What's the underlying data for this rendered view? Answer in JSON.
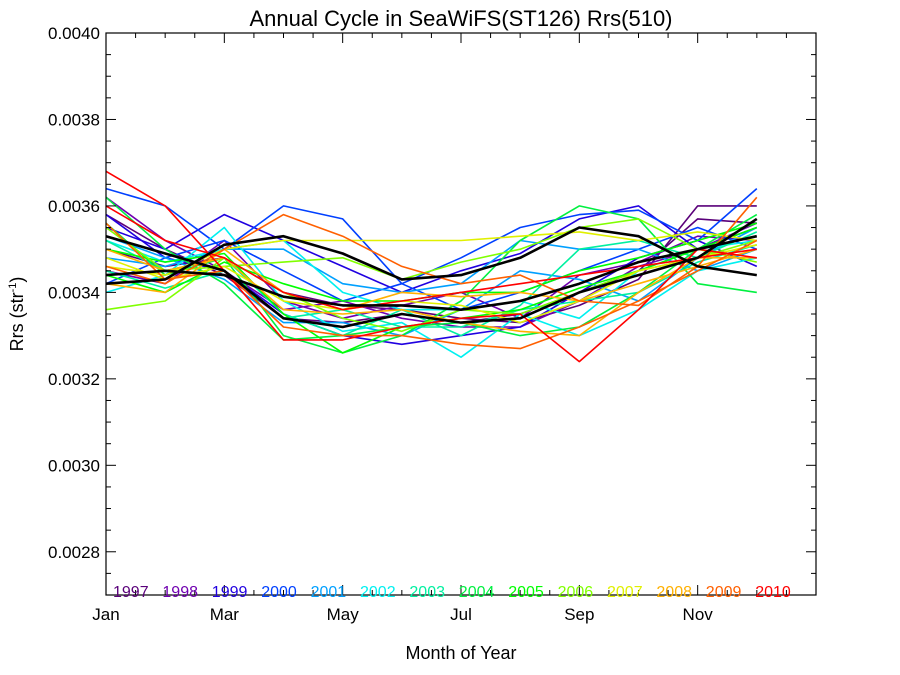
{
  "chart_data": {
    "type": "line",
    "title": "Annual Cycle in SeaWiFS(ST126) Rrs(510)",
    "xlabel": "Month of Year",
    "ylabel_main": "Rrs (str",
    "ylabel_sup": "-1",
    "ylabel_close": ")",
    "xlim": [
      1,
      13
    ],
    "ylim": [
      0.0027,
      0.004
    ],
    "x_ticks": [
      {
        "value": 1,
        "label": "Jan"
      },
      {
        "value": 3,
        "label": "Mar"
      },
      {
        "value": 5,
        "label": "May"
      },
      {
        "value": 7,
        "label": "Jul"
      },
      {
        "value": 9,
        "label": "Sep"
      },
      {
        "value": 11,
        "label": "Nov"
      }
    ],
    "y_ticks": [
      {
        "value": 0.0028,
        "label": "0.0028"
      },
      {
        "value": 0.003,
        "label": "0.0030"
      },
      {
        "value": 0.0032,
        "label": "0.0032"
      },
      {
        "value": 0.0034,
        "label": "0.0034"
      },
      {
        "value": 0.0036,
        "label": "0.0036"
      },
      {
        "value": 0.0038,
        "label": "0.0038"
      },
      {
        "value": 0.004,
        "label": "0.0040"
      }
    ],
    "x": [
      1,
      2,
      3,
      4,
      5,
      6,
      7,
      8,
      9,
      10,
      11,
      12
    ],
    "legend": [
      {
        "label": "1997",
        "color": "#5a007a"
      },
      {
        "label": "1998",
        "color": "#7000b0"
      },
      {
        "label": "1999",
        "color": "#2000e0"
      },
      {
        "label": "2000",
        "color": "#0040ff"
      },
      {
        "label": "2001",
        "color": "#00a0ff"
      },
      {
        "label": "2002",
        "color": "#00f0f0"
      },
      {
        "label": "2003",
        "color": "#00f0a0"
      },
      {
        "label": "2004",
        "color": "#00f040"
      },
      {
        "label": "2005",
        "color": "#00ff00"
      },
      {
        "label": "2006",
        "color": "#80ff00"
      },
      {
        "label": "2007",
        "color": "#e0f000"
      },
      {
        "label": "2008",
        "color": "#ffb000"
      },
      {
        "label": "2009",
        "color": "#ff6000"
      },
      {
        "label": "2010",
        "color": "#ff0000"
      }
    ],
    "series": [
      {
        "color": "#5a007a",
        "values": [
          0.0035,
          0.00346,
          0.00348,
          0.0034,
          0.00337,
          0.00336,
          0.00334,
          0.00333,
          0.00337,
          0.00343,
          0.0036,
          0.0036
        ]
      },
      {
        "color": "#5a007a",
        "values": [
          0.00358,
          0.0035,
          0.00344,
          0.00334,
          0.00333,
          0.00335,
          0.00333,
          0.00335,
          0.0034,
          0.00345,
          0.00357,
          0.00356
        ]
      },
      {
        "color": "#7000b0",
        "values": [
          0.00362,
          0.00352,
          0.00345,
          0.00336,
          0.00338,
          0.00334,
          0.00332,
          0.00332,
          0.00338,
          0.00346,
          0.0035,
          0.00356
        ]
      },
      {
        "color": "#7000b0",
        "values": [
          0.00345,
          0.00342,
          0.00352,
          0.00338,
          0.00334,
          0.00337,
          0.0034,
          0.00334,
          0.00344,
          0.00347,
          0.00353,
          0.00352
        ]
      },
      {
        "color": "#2000e0",
        "values": [
          0.00355,
          0.0035,
          0.00358,
          0.00352,
          0.00346,
          0.0034,
          0.00345,
          0.00349,
          0.00357,
          0.0036,
          0.0035,
          0.00355
        ]
      },
      {
        "color": "#2000e0",
        "values": [
          0.00358,
          0.00348,
          0.00345,
          0.00335,
          0.0033,
          0.00328,
          0.0033,
          0.00332,
          0.0034,
          0.00348,
          0.00352,
          0.00346
        ]
      },
      {
        "color": "#0040ff",
        "values": [
          0.00364,
          0.0036,
          0.0035,
          0.0036,
          0.00357,
          0.00342,
          0.00348,
          0.00355,
          0.00358,
          0.00359,
          0.00352,
          0.00364
        ]
      },
      {
        "color": "#0040ff",
        "values": [
          0.00342,
          0.00348,
          0.00352,
          0.00345,
          0.00338,
          0.00342,
          0.00336,
          0.0034,
          0.00345,
          0.0035,
          0.00355,
          0.0035
        ]
      },
      {
        "color": "#00a0ff",
        "values": [
          0.00353,
          0.00348,
          0.00343,
          0.00333,
          0.00333,
          0.0033,
          0.00336,
          0.00345,
          0.00343,
          0.00338,
          0.00348,
          0.00355
        ]
      },
      {
        "color": "#00a0ff",
        "values": [
          0.00348,
          0.00346,
          0.0035,
          0.0035,
          0.00342,
          0.0034,
          0.00342,
          0.00352,
          0.0035,
          0.0035,
          0.00345,
          0.0035
        ]
      },
      {
        "color": "#00f0f0",
        "values": [
          0.0034,
          0.00344,
          0.00355,
          0.00338,
          0.00331,
          0.00333,
          0.00325,
          0.00335,
          0.0033,
          0.00336,
          0.00345,
          0.00348
        ]
      },
      {
        "color": "#00f0f0",
        "values": [
          0.00352,
          0.00347,
          0.0035,
          0.00352,
          0.0034,
          0.00336,
          0.00336,
          0.00338,
          0.00334,
          0.00345,
          0.0035,
          0.00352
        ]
      },
      {
        "color": "#00f0a0",
        "values": [
          0.00345,
          0.00341,
          0.00345,
          0.00334,
          0.00336,
          0.00332,
          0.00332,
          0.00336,
          0.00338,
          0.0034,
          0.00347,
          0.00351
        ]
      },
      {
        "color": "#00f0a0",
        "values": [
          0.00352,
          0.00345,
          0.00348,
          0.00335,
          0.0033,
          0.00336,
          0.0033,
          0.00337,
          0.0035,
          0.00352,
          0.00348,
          0.00354
        ]
      },
      {
        "color": "#00f040",
        "values": [
          0.00356,
          0.00344,
          0.00348,
          0.0033,
          0.00326,
          0.0033,
          0.00338,
          0.00352,
          0.0036,
          0.00357,
          0.00342,
          0.0034
        ]
      },
      {
        "color": "#00f040",
        "values": [
          0.00362,
          0.0035,
          0.00342,
          0.00329,
          0.0033,
          0.00332,
          0.00333,
          0.0033,
          0.00332,
          0.0034,
          0.0035,
          0.00358
        ]
      },
      {
        "color": "#00ff00",
        "values": [
          0.0035,
          0.00347,
          0.00349,
          0.00335,
          0.00326,
          0.00332,
          0.00334,
          0.00336,
          0.00341,
          0.00345,
          0.0035,
          0.00355
        ]
      },
      {
        "color": "#00ff00",
        "values": [
          0.00344,
          0.0034,
          0.00347,
          0.00342,
          0.00338,
          0.00338,
          0.0034,
          0.0034,
          0.00345,
          0.00348,
          0.00352,
          0.00356
        ]
      },
      {
        "color": "#80ff00",
        "values": [
          0.00336,
          0.00338,
          0.00348,
          0.0034,
          0.00334,
          0.00331,
          0.00336,
          0.00335,
          0.0034,
          0.00345,
          0.00348,
          0.00352
        ]
      },
      {
        "color": "#80ff00",
        "values": [
          0.00355,
          0.00345,
          0.00346,
          0.00347,
          0.00348,
          0.00343,
          0.00347,
          0.0035,
          0.00355,
          0.00357,
          0.0035,
          0.00347
        ]
      },
      {
        "color": "#e0f000",
        "values": [
          0.00346,
          0.00344,
          0.0035,
          0.00352,
          0.00352,
          0.00352,
          0.00352,
          0.00353,
          0.00354,
          0.00352,
          0.00354,
          0.00352
        ]
      },
      {
        "color": "#e0f000",
        "values": [
          0.00348,
          0.00343,
          0.00346,
          0.00338,
          0.00336,
          0.00338,
          0.00337,
          0.00333,
          0.00338,
          0.00345,
          0.00348,
          0.00351
        ]
      },
      {
        "color": "#ffb000",
        "values": [
          0.0035,
          0.00345,
          0.00348,
          0.00336,
          0.00335,
          0.00336,
          0.00333,
          0.00331,
          0.0033,
          0.0034,
          0.00348,
          0.00348
        ]
      },
      {
        "color": "#ffb000",
        "values": [
          0.00342,
          0.0034,
          0.0035,
          0.0034,
          0.00336,
          0.0034,
          0.00339,
          0.0034,
          0.00338,
          0.00342,
          0.00346,
          0.0035
        ]
      },
      {
        "color": "#ff6000",
        "values": [
          0.00346,
          0.00342,
          0.0035,
          0.00358,
          0.00353,
          0.00346,
          0.00342,
          0.00344,
          0.00338,
          0.00337,
          0.00346,
          0.00362
        ]
      },
      {
        "color": "#ff6000",
        "values": [
          0.00356,
          0.00343,
          0.00345,
          0.00332,
          0.0033,
          0.0033,
          0.00328,
          0.00327,
          0.00332,
          0.00338,
          0.00345,
          0.00352
        ]
      },
      {
        "color": "#ff0000",
        "values": [
          0.00368,
          0.0036,
          0.00345,
          0.00329,
          0.00329,
          0.00332,
          0.00334,
          0.00335,
          0.00324,
          0.00336,
          0.0035,
          0.00348
        ]
      },
      {
        "color": "#ff0000",
        "values": [
          0.0036,
          0.00352,
          0.00348,
          0.0034,
          0.00336,
          0.00338,
          0.0034,
          0.00342,
          0.00344,
          0.00346,
          0.00348,
          0.0035
        ]
      },
      {
        "color": "#000000",
        "width": 2.6,
        "values": [
          0.00342,
          0.00343,
          0.00351,
          0.00353,
          0.00349,
          0.00343,
          0.00344,
          0.00348,
          0.00355,
          0.00353,
          0.00346,
          0.00344
        ]
      },
      {
        "color": "#000000",
        "width": 2.6,
        "values": [
          0.00353,
          0.00349,
          0.00345,
          0.00334,
          0.00332,
          0.00335,
          0.00333,
          0.00334,
          0.0034,
          0.00344,
          0.00348,
          0.00357
        ]
      },
      {
        "color": "#000000",
        "width": 2.6,
        "values": [
          0.00344,
          0.00345,
          0.00344,
          0.00339,
          0.00337,
          0.00337,
          0.00336,
          0.00338,
          0.00342,
          0.00347,
          0.0035,
          0.00353
        ]
      }
    ]
  }
}
